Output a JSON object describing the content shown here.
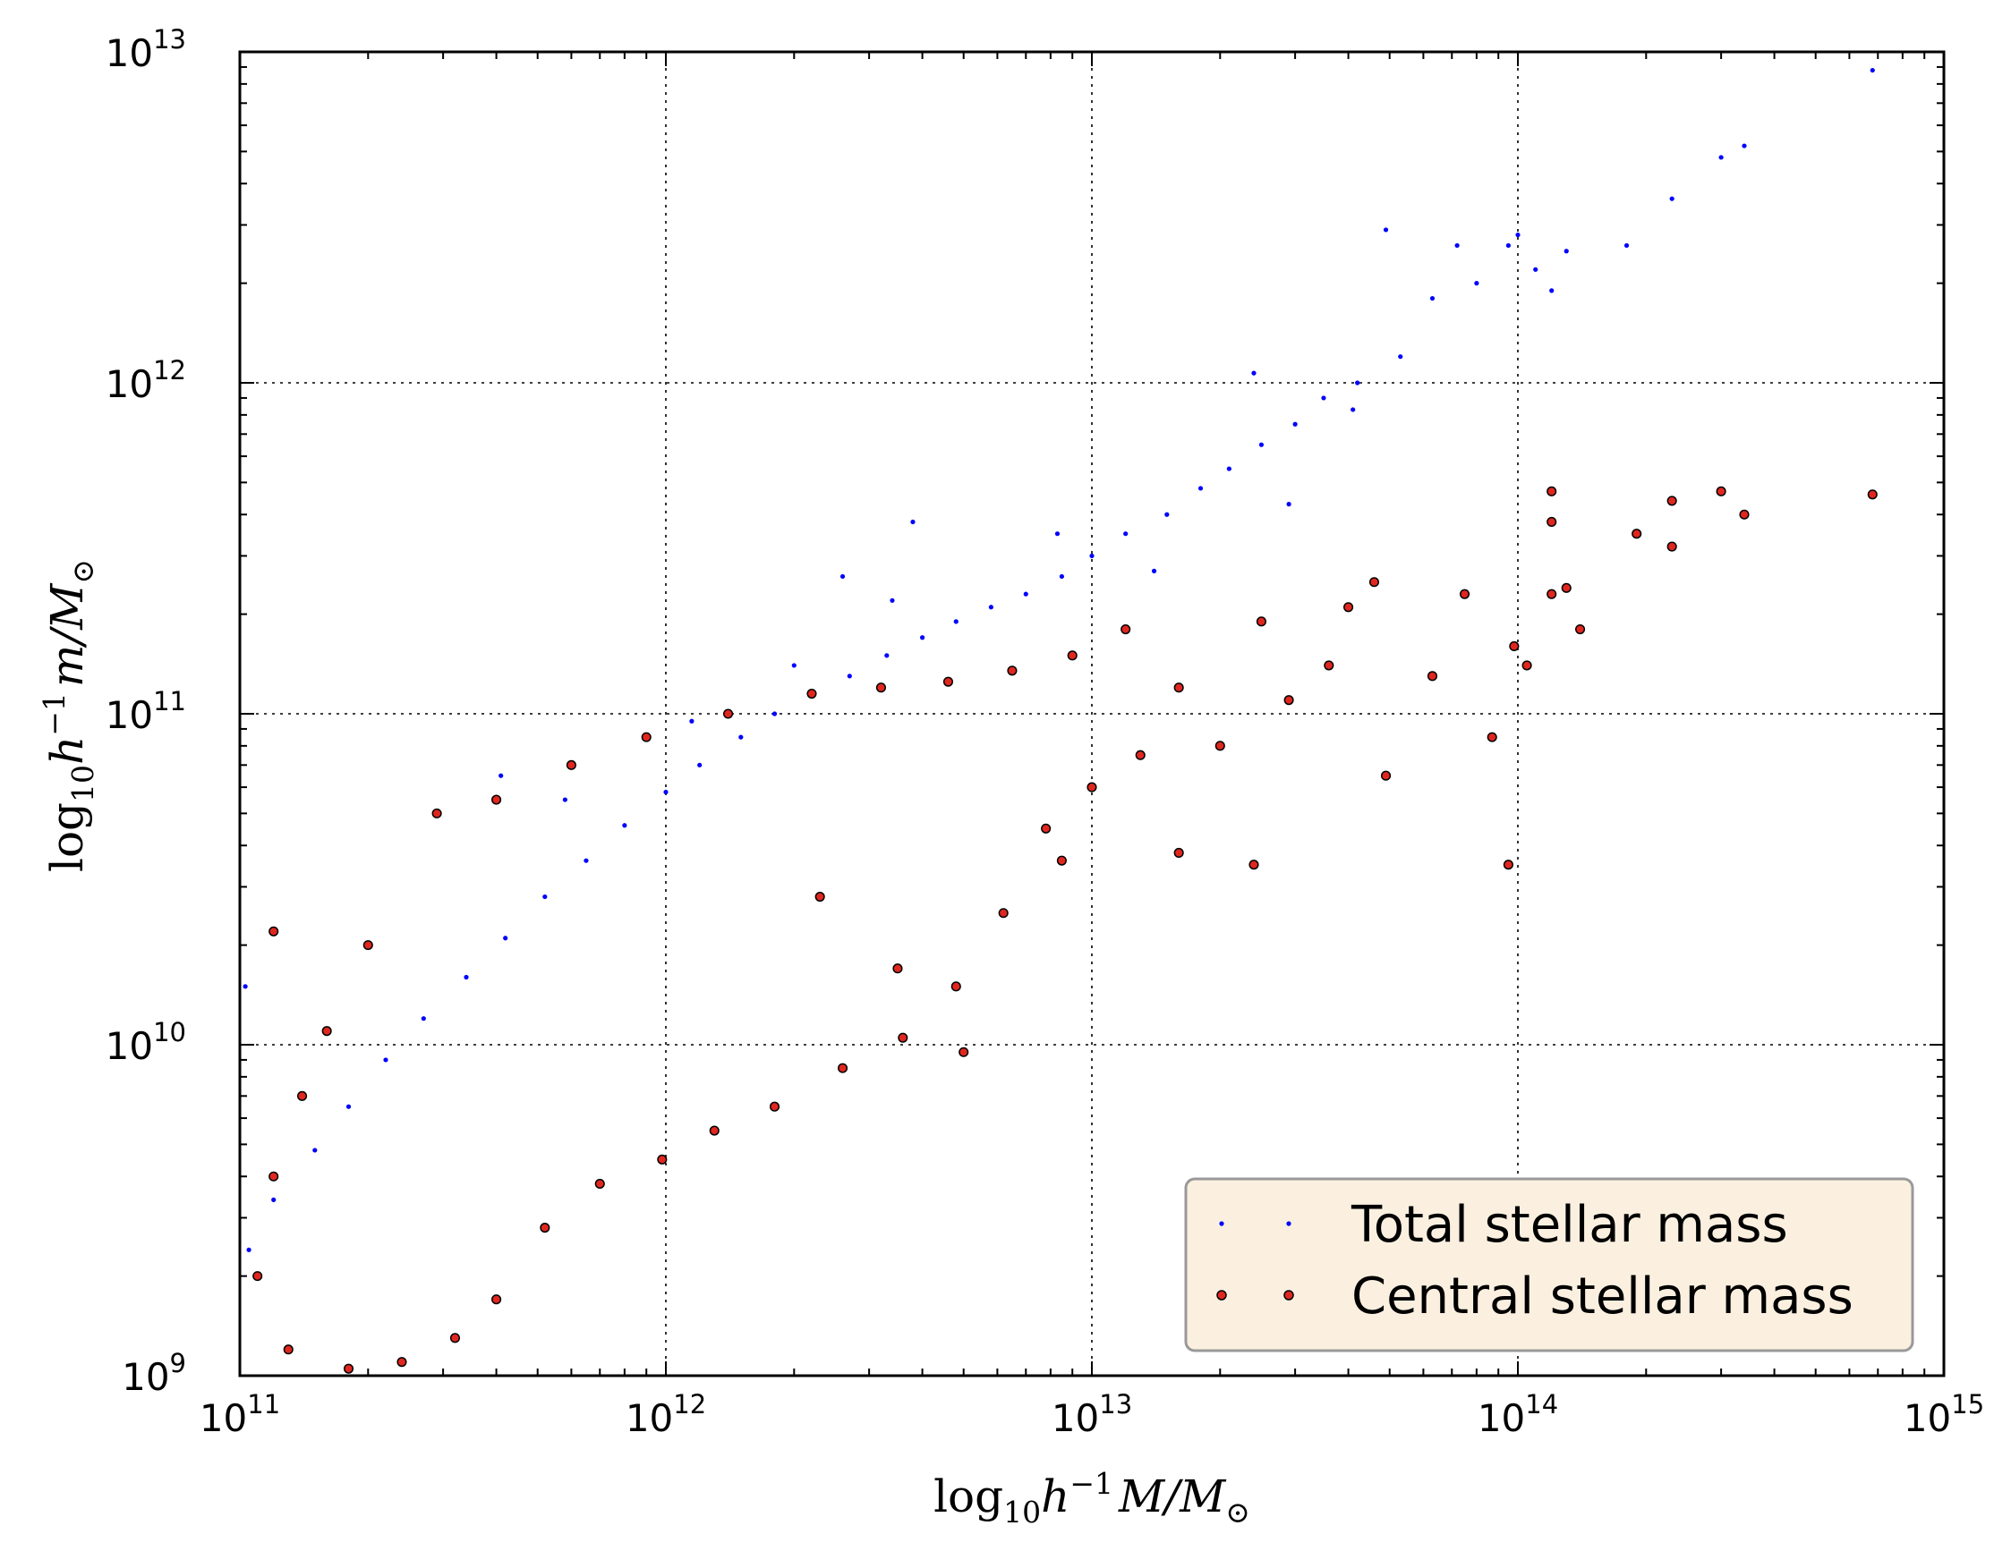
{
  "chart_data": {
    "type": "scatter",
    "title": "",
    "xlabel": {
      "prefix": "log",
      "sub": "10",
      "base": "h",
      "sup": "−1",
      "rest": "M/M",
      "sun": "⊙"
    },
    "ylabel": {
      "prefix": "log",
      "sub": "10",
      "base": "h",
      "sup": "−1",
      "rest": "m/M",
      "sun": "⊙"
    },
    "xscale": "log",
    "yscale": "log",
    "xlim": [
      100000000000.0,
      1000000000000000.0
    ],
    "ylim": [
      1000000000.0,
      10000000000000.0
    ],
    "x_ticks": [
      {
        "base": "10",
        "exp": "11"
      },
      {
        "base": "10",
        "exp": "12"
      },
      {
        "base": "10",
        "exp": "13"
      },
      {
        "base": "10",
        "exp": "14"
      },
      {
        "base": "10",
        "exp": "15"
      }
    ],
    "y_ticks": [
      {
        "base": "10",
        "exp": "9"
      },
      {
        "base": "10",
        "exp": "10"
      },
      {
        "base": "10",
        "exp": "11"
      },
      {
        "base": "10",
        "exp": "12"
      },
      {
        "base": "10",
        "exp": "13"
      }
    ],
    "grid": true,
    "legend": {
      "position": "bottom-right"
    },
    "series": [
      {
        "name": "Total stellar mass",
        "color": "#0000ff",
        "marker": "point",
        "points": [
          [
            180000000000000.0,
            2600000000000.0
          ],
          [
            230000000000000.0,
            3600000000000.0
          ],
          [
            300000000000000.0,
            4800000000000.0
          ],
          [
            340000000000000.0,
            5200000000000.0
          ],
          [
            680000000000000.0,
            8800000000000.0
          ],
          [
            110000000000000.0,
            2200000000000.0
          ],
          [
            130000000000000.0,
            2500000000000.0
          ],
          [
            95000000000000.0,
            2600000000000.0
          ],
          [
            80000000000000.0,
            2000000000000.0
          ],
          [
            72000000000000.0,
            2600000000000.0
          ],
          [
            49000000000000.0,
            2900000000000.0
          ],
          [
            120000000000000.0,
            1900000000000.0
          ],
          [
            100000000000000.0,
            2800000000000.0
          ],
          [
            63000000000000.0,
            1800000000000.0
          ],
          [
            53000000000000.0,
            1200000000000.0
          ],
          [
            42000000000000.0,
            1000000000000.0
          ],
          [
            35000000000000.0,
            900000000000.0
          ],
          [
            30000000000000.0,
            750000000000.0
          ],
          [
            25000000000000.0,
            650000000000.0
          ],
          [
            21000000000000.0,
            550000000000.0
          ],
          [
            18000000000000.0,
            480000000000.0
          ],
          [
            15000000000000.0,
            400000000000.0
          ],
          [
            12000000000000.0,
            350000000000.0
          ],
          [
            10000000000000.0,
            300000000000.0
          ],
          [
            8500000000000.0,
            260000000000.0
          ],
          [
            7000000000000.0,
            230000000000.0
          ],
          [
            5800000000000.0,
            210000000000.0
          ],
          [
            4800000000000.0,
            190000000000.0
          ],
          [
            4000000000000.0,
            170000000000.0
          ],
          [
            3300000000000.0,
            150000000000.0
          ],
          [
            2700000000000.0,
            130000000000.0
          ],
          [
            2200000000000.0,
            115000000000.0
          ],
          [
            1800000000000.0,
            100000000000.0
          ],
          [
            1500000000000.0,
            85000000000.0
          ],
          [
            1200000000000.0,
            70000000000.0
          ],
          [
            1000000000000.0,
            58000000000.0
          ],
          [
            800000000000.0,
            46000000000.0
          ],
          [
            650000000000.0,
            36000000000.0
          ],
          [
            520000000000.0,
            28000000000.0
          ],
          [
            420000000000.0,
            21000000000.0
          ],
          [
            340000000000.0,
            16000000000.0
          ],
          [
            270000000000.0,
            12000000000.0
          ],
          [
            220000000000.0,
            9000000000.0
          ],
          [
            180000000000.0,
            6500000000.0
          ],
          [
            150000000000.0,
            4800000000.0
          ],
          [
            120000000000.0,
            3400000000.0
          ],
          [
            105000000000.0,
            2400000000.0
          ],
          [
            103000000000.0,
            15000000000.0
          ],
          [
            3800000000000.0,
            380000000000.0
          ],
          [
            2600000000000.0,
            260000000000.0
          ],
          [
            410000000000.0,
            65000000000.0
          ],
          [
            24000000000000.0,
            1070000000000.0
          ],
          [
            29000000000000.0,
            430000000000.0
          ],
          [
            14000000000000.0,
            270000000000.0
          ],
          [
            8300000000000.0,
            350000000000.0
          ],
          [
            3400000000000.0,
            220000000000.0
          ],
          [
            2000000000000.0,
            140000000000.0
          ],
          [
            1150000000000.0,
            95000000000.0
          ],
          [
            580000000000.0,
            55000000000.0
          ],
          [
            41000000000000.0,
            830000000000.0
          ]
        ]
      },
      {
        "name": "Central stellar mass",
        "color": "#e0271f",
        "marker": "circle",
        "points": [
          [
            680000000000000.0,
            460000000000.0
          ],
          [
            300000000000000.0,
            470000000000.0
          ],
          [
            340000000000000.0,
            400000000000.0
          ],
          [
            230000000000000.0,
            440000000000.0
          ],
          [
            190000000000000.0,
            350000000000.0
          ],
          [
            230000000000000.0,
            320000000000.0
          ],
          [
            120000000000000.0,
            470000000000.0
          ],
          [
            120000000000000.0,
            380000000000.0
          ],
          [
            130000000000000.0,
            240000000000.0
          ],
          [
            120000000000000.0,
            230000000000.0
          ],
          [
            140000000000000.0,
            180000000000.0
          ],
          [
            105000000000000.0,
            140000000000.0
          ],
          [
            98000000000000.0,
            160000000000.0
          ],
          [
            95000000000000.0,
            35000000000.0
          ],
          [
            87000000000000.0,
            85000000000.0
          ],
          [
            75000000000000.0,
            230000000000.0
          ],
          [
            63000000000000.0,
            130000000000.0
          ],
          [
            49000000000000.0,
            65000000000.0
          ],
          [
            46000000000000.0,
            250000000000.0
          ],
          [
            40000000000000.0,
            210000000000.0
          ],
          [
            36000000000000.0,
            140000000000.0
          ],
          [
            29000000000000.0,
            110000000000.0
          ],
          [
            25000000000000.0,
            190000000000.0
          ],
          [
            20000000000000.0,
            80000000000.0
          ],
          [
            16000000000000.0,
            120000000000.0
          ],
          [
            13000000000000.0,
            75000000000.0
          ],
          [
            10000000000000.0,
            60000000000.0
          ],
          [
            7800000000000.0,
            45000000000.0
          ],
          [
            6200000000000.0,
            25000000000.0
          ],
          [
            4800000000000.0,
            15000000000.0
          ],
          [
            3600000000000.0,
            10500000000.0
          ],
          [
            2600000000000.0,
            8500000000.0
          ],
          [
            1800000000000.0,
            6500000000.0
          ],
          [
            1300000000000.0,
            5500000000.0
          ],
          [
            980000000000.0,
            4500000000.0
          ],
          [
            700000000000.0,
            3800000000.0
          ],
          [
            520000000000.0,
            2800000000.0
          ],
          [
            400000000000.0,
            1700000000.0
          ],
          [
            320000000000.0,
            1300000000.0
          ],
          [
            240000000000.0,
            1100000000.0
          ],
          [
            180000000000.0,
            1050000000.0
          ],
          [
            130000000000.0,
            1200000000.0
          ],
          [
            110000000000.0,
            2000000000.0
          ],
          [
            120000000000.0,
            4000000000.0
          ],
          [
            140000000000.0,
            7000000000.0
          ],
          [
            160000000000.0,
            11000000000.0
          ],
          [
            120000000000.0,
            22000000000.0
          ],
          [
            200000000000.0,
            20000000000.0
          ],
          [
            290000000000.0,
            50000000000.0
          ],
          [
            400000000000.0,
            55000000000.0
          ],
          [
            600000000000.0,
            70000000000.0
          ],
          [
            900000000000.0,
            85000000000.0
          ],
          [
            1400000000000.0,
            100000000000.0
          ],
          [
            2200000000000.0,
            115000000000.0
          ],
          [
            3200000000000.0,
            120000000000.0
          ],
          [
            4600000000000.0,
            125000000000.0
          ],
          [
            6500000000000.0,
            135000000000.0
          ],
          [
            9000000000000.0,
            150000000000.0
          ],
          [
            12000000000000.0,
            180000000000.0
          ],
          [
            5000000000000.0,
            9500000000.0
          ],
          [
            8500000000000.0,
            36000000000.0
          ],
          [
            16000000000000.0,
            38000000000.0
          ],
          [
            24000000000000.0,
            35000000000.0
          ],
          [
            3500000000000.0,
            17000000000.0
          ],
          [
            2300000000000.0,
            28000000000.0
          ]
        ]
      }
    ]
  }
}
